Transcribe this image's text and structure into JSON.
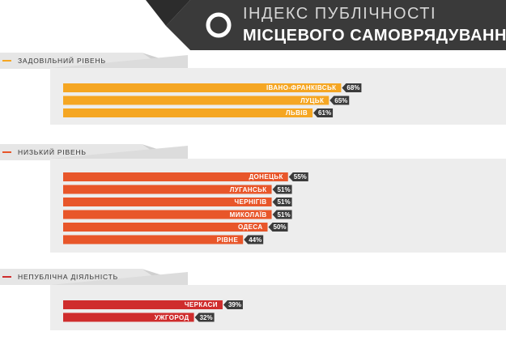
{
  "title": {
    "line1": "ІНДЕКС ПУБЛІЧНОСТІ",
    "line2": "МІСЦЕВОГО САМОВРЯДУВАННЯ"
  },
  "colors": {
    "header": "#3a3a3a",
    "satisfactory": "#f5a623",
    "low": "#e8562a",
    "nonpublic": "#cf2d2d",
    "badge": "#3b3b3b",
    "panel": "#ededed"
  },
  "chart_data": {
    "type": "bar",
    "orientation": "horizontal",
    "value_unit": "%",
    "groups": [
      {
        "name": "ЗАДОВІЛЬНИЙ РІВЕНЬ",
        "color_key": "satisfactory",
        "bars": [
          {
            "label": "ІВАНО-ФРАНКІВСЬК",
            "value": 68,
            "value_text": "68%"
          },
          {
            "label": "ЛУЦЬК",
            "value": 65,
            "value_text": "65%"
          },
          {
            "label": "ЛЬВІВ",
            "value": 61,
            "value_text": "61%"
          }
        ]
      },
      {
        "name": "НИЗЬКИЙ РІВЕНЬ",
        "color_key": "low",
        "bars": [
          {
            "label": "ДОНЕЦЬК",
            "value": 55,
            "value_text": "55%"
          },
          {
            "label": "ЛУГАНСЬК",
            "value": 51,
            "value_text": "51%"
          },
          {
            "label": "ЧЕРНІГІВ",
            "value": 51,
            "value_text": "51%"
          },
          {
            "label": "МИКОЛАЇВ",
            "value": 51,
            "value_text": "51%"
          },
          {
            "label": "ОДЕСА",
            "value": 50,
            "value_text": "50%"
          },
          {
            "label": "РІВНЕ",
            "value": 44,
            "value_text": "44%"
          }
        ]
      },
      {
        "name": "НЕПУБЛІЧНА ДІЯЛЬНІСТЬ",
        "color_key": "nonpublic",
        "bars": [
          {
            "label": "ЧЕРКАСИ",
            "value": 39,
            "value_text": "39%"
          },
          {
            "label": "УЖГОРОД",
            "value": 32,
            "value_text": "32%"
          }
        ]
      }
    ]
  }
}
